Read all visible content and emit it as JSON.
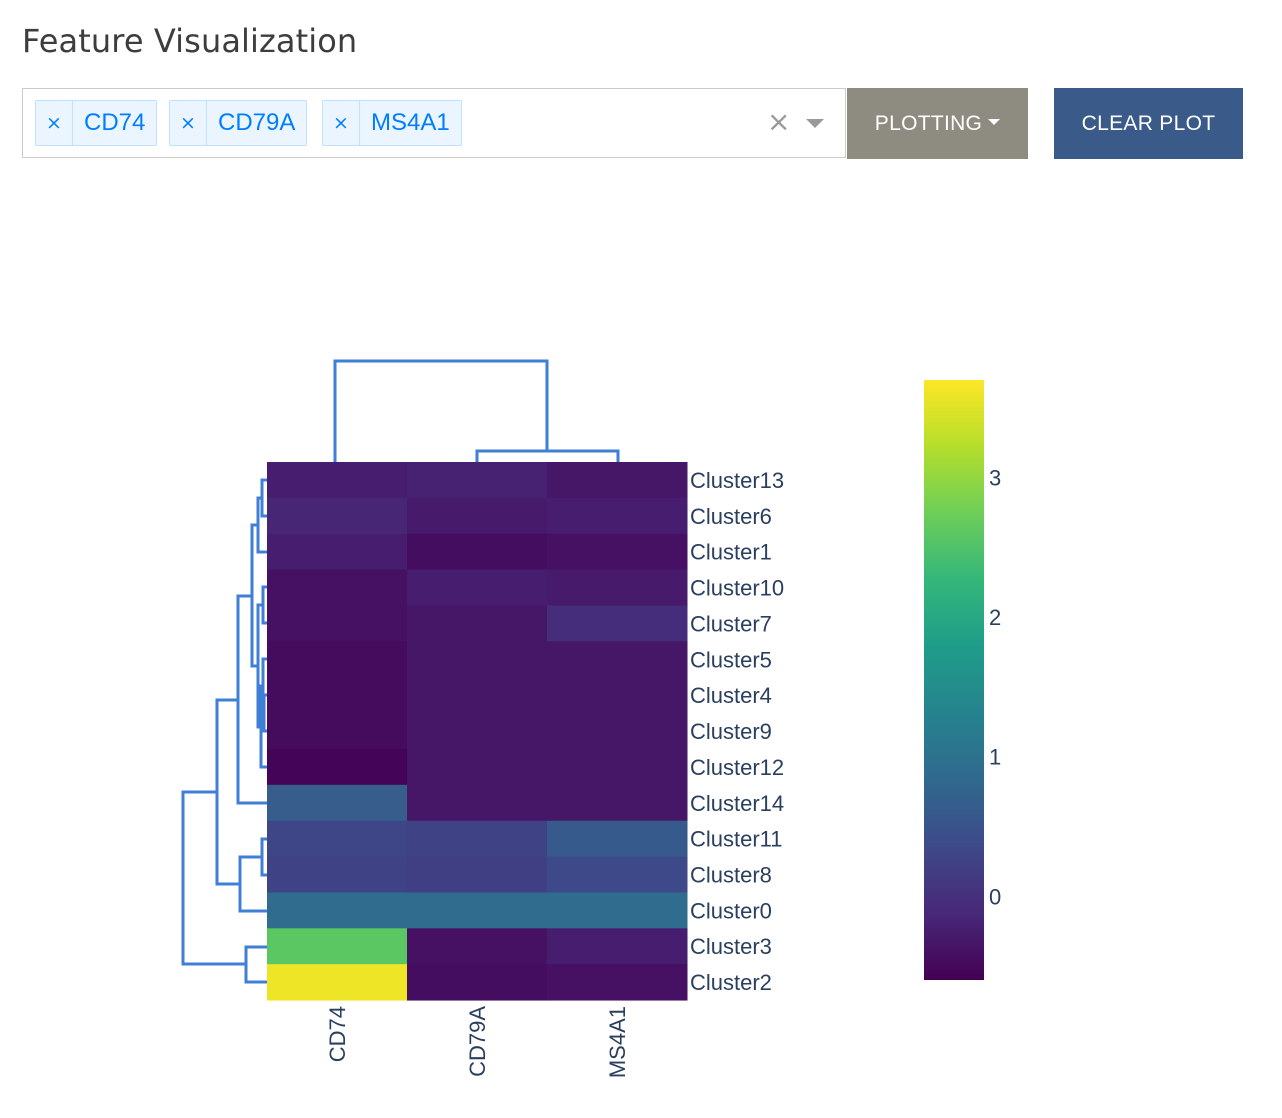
{
  "title": "Feature Visualization",
  "selector": {
    "tags": [
      {
        "label": "CD74",
        "remove": "×"
      },
      {
        "label": "CD79A",
        "remove": "×"
      },
      {
        "label": "MS4A1",
        "remove": "×"
      }
    ],
    "clear": "×"
  },
  "buttons": {
    "plotting": "PLOTTING",
    "clear_plot": "CLEAR PLOT"
  },
  "chart_data": {
    "type": "heatmap",
    "columns": [
      "CD74",
      "CD79A",
      "MS4A1"
    ],
    "rows": [
      "Cluster13",
      "Cluster6",
      "Cluster1",
      "Cluster10",
      "Cluster7",
      "Cluster5",
      "Cluster4",
      "Cluster9",
      "Cluster12",
      "Cluster14",
      "Cluster11",
      "Cluster8",
      "Cluster0",
      "Cluster3",
      "Cluster2"
    ],
    "values": [
      [
        -0.25,
        -0.2,
        -0.35
      ],
      [
        -0.15,
        -0.3,
        -0.25
      ],
      [
        -0.25,
        -0.45,
        -0.4
      ],
      [
        -0.4,
        -0.25,
        -0.3
      ],
      [
        -0.4,
        -0.35,
        -0.05
      ],
      [
        -0.48,
        -0.35,
        -0.35
      ],
      [
        -0.48,
        -0.35,
        -0.35
      ],
      [
        -0.48,
        -0.35,
        -0.35
      ],
      [
        -0.55,
        -0.35,
        -0.35
      ],
      [
        0.65,
        -0.35,
        -0.35
      ],
      [
        0.3,
        0.25,
        0.6
      ],
      [
        0.25,
        0.2,
        0.35
      ],
      [
        0.9,
        0.9,
        0.9
      ],
      [
        2.6,
        -0.4,
        -0.25
      ],
      [
        3.6,
        -0.45,
        -0.4
      ]
    ],
    "colorscale": "Viridis",
    "zmin": -0.6,
    "zmax": 3.7,
    "colorbar_ticks": [
      0,
      1,
      2,
      3
    ]
  }
}
